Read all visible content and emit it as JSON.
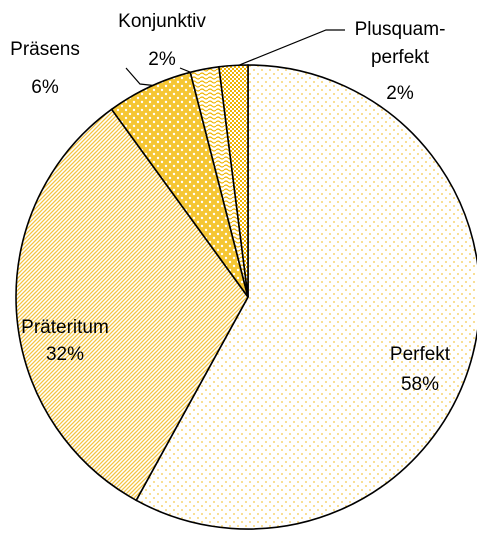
{
  "chart_data": {
    "type": "pie",
    "categories": [
      "Perfekt",
      "Präteritum",
      "Präsens",
      "Konjunktiv",
      "Plusquam-\nperfekt"
    ],
    "values": [
      58,
      32,
      6,
      2,
      2
    ],
    "value_labels": [
      "58%",
      "32%",
      "6%",
      "2%",
      "2%"
    ],
    "colors": [
      "#f6c94a",
      "#f4c440",
      "#f2b800",
      "#f0b400",
      "#efb200"
    ],
    "start_angle": 0,
    "direction": "clockwise"
  }
}
